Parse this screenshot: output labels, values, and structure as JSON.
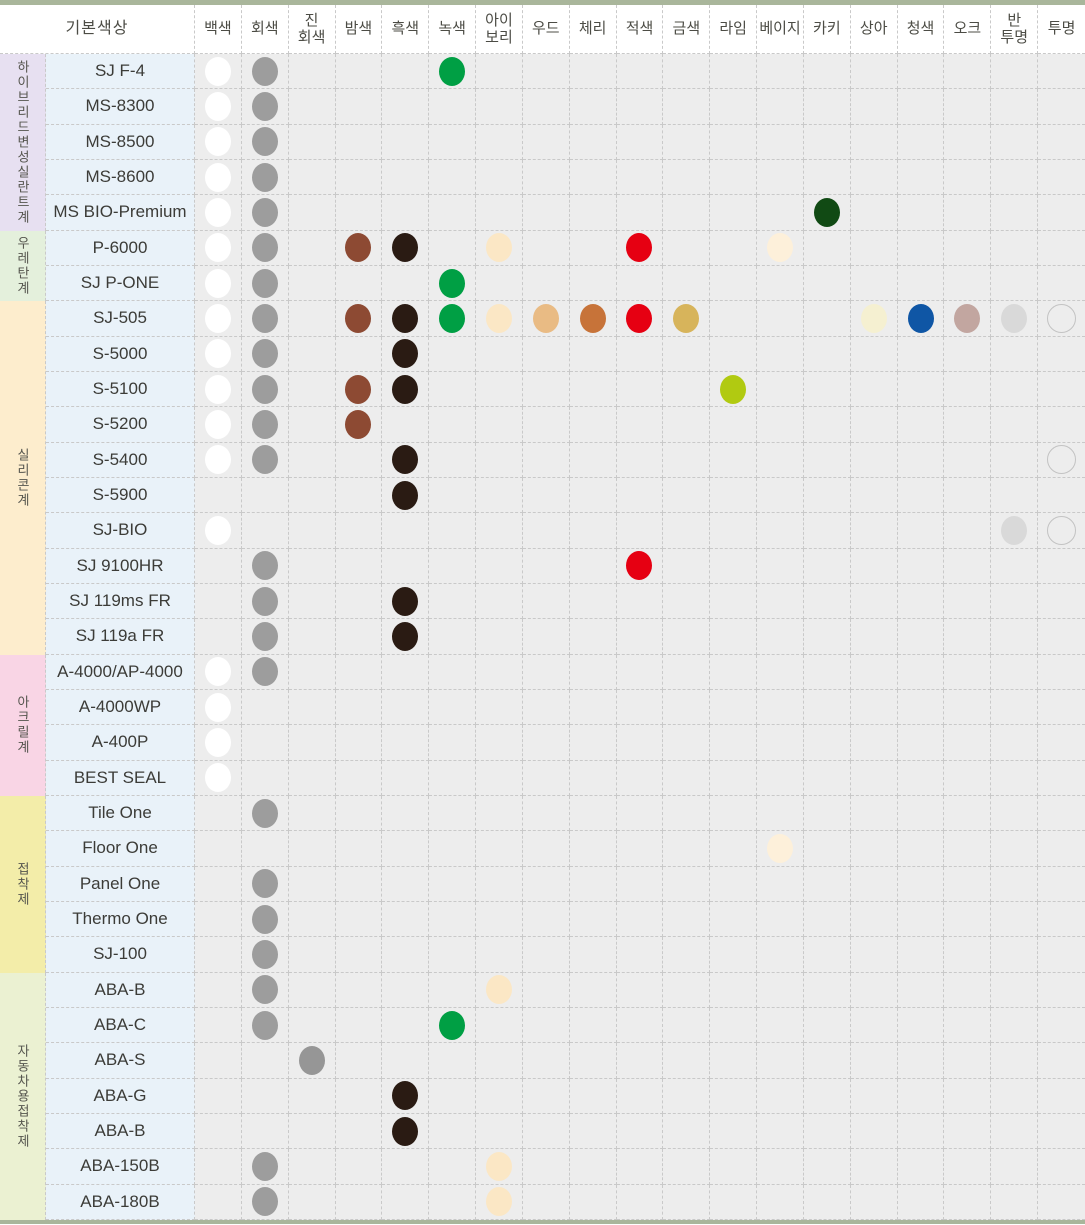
{
  "header": {
    "first_col_label": "기본색상",
    "columns": [
      {
        "key": "white",
        "label": "백색",
        "color": "#ffffff"
      },
      {
        "key": "gray",
        "label": "회색",
        "color": "#9d9d9d"
      },
      {
        "key": "darkgray",
        "label": "진\n회색",
        "color": "#969696"
      },
      {
        "key": "chestnut",
        "label": "밤색",
        "color": "#8d4a33"
      },
      {
        "key": "black",
        "label": "흑색",
        "color": "#2a1b13"
      },
      {
        "key": "green",
        "label": "녹색",
        "color": "#009f44"
      },
      {
        "key": "ivory",
        "label": "아이\n보리",
        "color": "#fbe7c5"
      },
      {
        "key": "wood",
        "label": "우드",
        "color": "#e9bb84"
      },
      {
        "key": "cherry",
        "label": "체리",
        "color": "#c77339"
      },
      {
        "key": "red",
        "label": "적색",
        "color": "#e60012"
      },
      {
        "key": "gold",
        "label": "금색",
        "color": "#d7b45b"
      },
      {
        "key": "lime",
        "label": "라임",
        "color": "#b1ca11"
      },
      {
        "key": "beige",
        "label": "베이지",
        "color": "#fdf0da"
      },
      {
        "key": "khaki",
        "label": "카키",
        "color": "#114a14"
      },
      {
        "key": "sangah",
        "label": "상아",
        "color": "#f5f0d1"
      },
      {
        "key": "blue",
        "label": "청색",
        "color": "#0f56a5"
      },
      {
        "key": "oak",
        "label": "오크",
        "color": "#c2a6a0"
      },
      {
        "key": "translucent",
        "label": "반\n투명",
        "color": "#d9d9d9"
      },
      {
        "key": "transparent",
        "label": "투명",
        "color": "transparent",
        "outline": true
      }
    ]
  },
  "categories": [
    {
      "label": "하이브리드변성실란트계",
      "color": "#e7e0f1",
      "rows": 5
    },
    {
      "label": "우레탄계",
      "color": "#e4f0dc",
      "rows": 2
    },
    {
      "label": "실리콘계",
      "color": "#fdedcd",
      "rows": 10
    },
    {
      "label": "아크릴계",
      "color": "#f9d5e5",
      "rows": 4
    },
    {
      "label": "접착제",
      "color": "#f3eda9",
      "rows": 5
    },
    {
      "label": "자동차용접착제",
      "color": "#ebf1d2",
      "rows": 7
    }
  ],
  "rows": [
    {
      "name": "SJ F-4",
      "dots": [
        "white",
        "gray",
        "green"
      ]
    },
    {
      "name": "MS-8300",
      "dots": [
        "white",
        "gray"
      ]
    },
    {
      "name": "MS-8500",
      "dots": [
        "white",
        "gray"
      ]
    },
    {
      "name": "MS-8600",
      "dots": [
        "white",
        "gray"
      ]
    },
    {
      "name": "MS BIO-Premium",
      "dots": [
        "white",
        "gray",
        "khaki"
      ]
    },
    {
      "name": "P-6000",
      "dots": [
        "white",
        "gray",
        "chestnut",
        "black",
        "ivory",
        "red",
        "beige"
      ]
    },
    {
      "name": "SJ P-ONE",
      "dots": [
        "white",
        "gray",
        "green"
      ]
    },
    {
      "name": "SJ-505",
      "dots": [
        "white",
        "gray",
        "chestnut",
        "black",
        "green",
        "ivory",
        "wood",
        "cherry",
        "red",
        "gold",
        "sangah",
        "blue",
        "oak",
        "translucent",
        "transparent"
      ]
    },
    {
      "name": "S-5000",
      "dots": [
        "white",
        "gray",
        "black"
      ]
    },
    {
      "name": "S-5100",
      "dots": [
        "white",
        "gray",
        "chestnut",
        "black",
        "lime"
      ]
    },
    {
      "name": "S-5200",
      "dots": [
        "white",
        "gray",
        "chestnut"
      ]
    },
    {
      "name": "S-5400",
      "dots": [
        "white",
        "gray",
        "black",
        "transparent"
      ]
    },
    {
      "name": "S-5900",
      "dots": [
        "black"
      ]
    },
    {
      "name": "SJ-BIO",
      "dots": [
        "white",
        "translucent",
        "transparent"
      ]
    },
    {
      "name": "SJ 9100HR",
      "dots": [
        "gray",
        "red"
      ]
    },
    {
      "name": "SJ 119ms FR",
      "dots": [
        "gray",
        "black"
      ]
    },
    {
      "name": "SJ 119a FR",
      "dots": [
        "gray",
        "black"
      ]
    },
    {
      "name": "A-4000/AP-4000",
      "dots": [
        "white",
        "gray"
      ]
    },
    {
      "name": "A-4000WP",
      "dots": [
        "white"
      ]
    },
    {
      "name": "A-400P",
      "dots": [
        "white"
      ]
    },
    {
      "name": "BEST SEAL",
      "dots": [
        "white"
      ]
    },
    {
      "name": "Tile One",
      "dots": [
        "gray"
      ]
    },
    {
      "name": "Floor One",
      "dots": [
        "beige"
      ]
    },
    {
      "name": "Panel One",
      "dots": [
        "gray"
      ]
    },
    {
      "name": "Thermo One",
      "dots": [
        "gray"
      ]
    },
    {
      "name": "SJ-100",
      "dots": [
        "gray"
      ]
    },
    {
      "name": "ABA-B",
      "dots": [
        "gray",
        "ivory"
      ]
    },
    {
      "name": "ABA-C",
      "dots": [
        "gray",
        "green"
      ]
    },
    {
      "name": "ABA-S",
      "dots": [
        "darkgray"
      ]
    },
    {
      "name": "ABA-G",
      "dots": [
        "black"
      ]
    },
    {
      "name": "ABA-B",
      "dots": [
        "black"
      ]
    },
    {
      "name": "ABA-150B",
      "dots": [
        "gray",
        "ivory"
      ]
    },
    {
      "name": "ABA-180B",
      "dots": [
        "gray",
        "ivory"
      ]
    }
  ]
}
